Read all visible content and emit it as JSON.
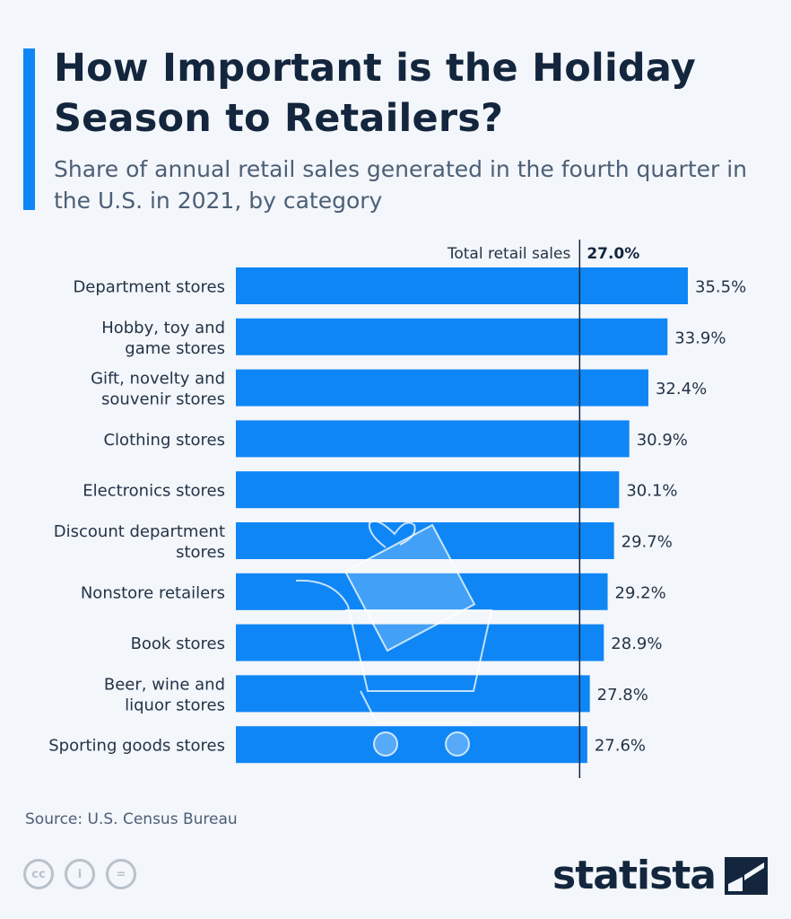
{
  "header": {
    "title": "How Important is the Holiday Season to Retailers?",
    "subtitle": "Share of annual retail sales generated in the fourth quarter in the U.S. in 2021, by category"
  },
  "chart_data": {
    "type": "bar",
    "orientation": "horizontal",
    "title": "How Important is the Holiday Season to Retailers?",
    "subtitle": "Share of annual retail sales generated in the fourth quarter in the U.S. in 2021, by category",
    "categories": [
      "Department stores",
      "Hobby, toy and game stores",
      "Gift, novelty and souvenir stores",
      "Clothing stores",
      "Electronics stores",
      "Discount department stores",
      "Nonstore retailers",
      "Book stores",
      "Beer, wine and liquor stores",
      "Sporting goods stores"
    ],
    "category_lines": [
      [
        "Department stores"
      ],
      [
        "Hobby, toy and",
        "game stores"
      ],
      [
        "Gift, novelty and",
        "souvenir stores"
      ],
      [
        "Clothing stores"
      ],
      [
        "Electronics stores"
      ],
      [
        "Discount department",
        "stores"
      ],
      [
        "Nonstore retailers"
      ],
      [
        "Book stores"
      ],
      [
        "Beer, wine and",
        "liquor stores"
      ],
      [
        "Sporting goods stores"
      ]
    ],
    "values": [
      35.5,
      33.9,
      32.4,
      30.9,
      30.1,
      29.7,
      29.2,
      28.9,
      27.8,
      27.6
    ],
    "value_labels": [
      "35.5%",
      "33.9%",
      "32.4%",
      "30.9%",
      "30.1%",
      "29.7%",
      "29.2%",
      "28.9%",
      "27.8%",
      "27.6%"
    ],
    "unit": "%",
    "xlim": [
      0,
      35.5
    ],
    "reference_line": {
      "label": "Total retail sales",
      "value": 27.0,
      "value_label": "27.0%"
    },
    "bar_color": "#0f86f5",
    "grid": false
  },
  "footer": {
    "source": "Source: U.S. Census Bureau",
    "license_icons": [
      "cc-icon",
      "attribution-icon",
      "no-derivatives-icon"
    ],
    "license_glyphs": [
      "cc",
      "i",
      "="
    ],
    "logo_text": "statista"
  },
  "colors": {
    "accent": "#0f86f5",
    "title": "#13263d",
    "text": "#4c5f76",
    "background": "#f3f6fa"
  }
}
